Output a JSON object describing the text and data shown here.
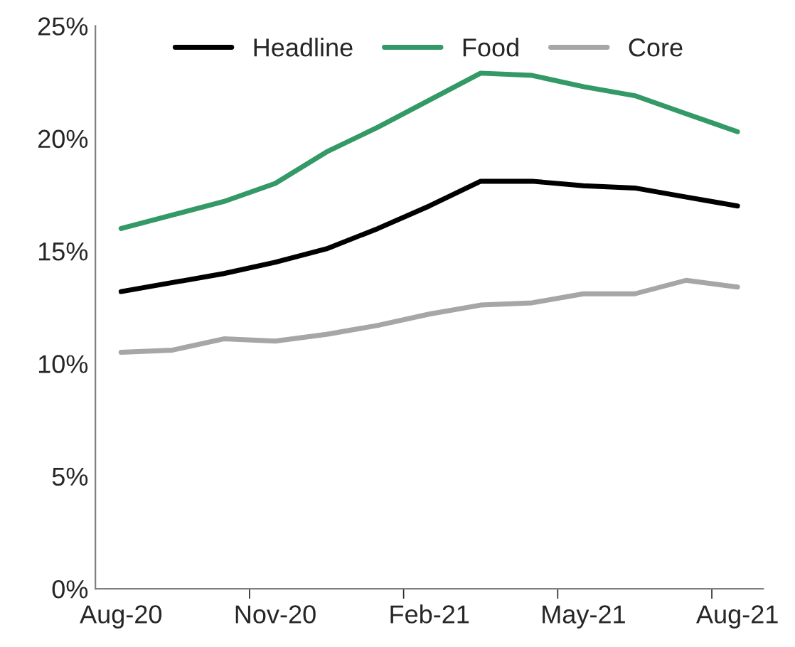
{
  "chart_data": {
    "type": "line",
    "categories": [
      "Aug-20",
      null,
      null,
      "Nov-20",
      null,
      null,
      "Feb-21",
      null,
      null,
      "May-21",
      null,
      null,
      "Aug-21"
    ],
    "series": [
      {
        "name": "Headline",
        "color": "#000000",
        "values": [
          13.2,
          13.6,
          14.0,
          14.5,
          15.1,
          16.0,
          17.0,
          18.1,
          18.1,
          17.9,
          17.8,
          17.4,
          17.0
        ]
      },
      {
        "name": "Food",
        "color": "#339966",
        "values": [
          16.0,
          16.6,
          17.2,
          18.0,
          19.4,
          20.5,
          21.7,
          22.9,
          22.8,
          22.3,
          21.9,
          21.1,
          20.3
        ]
      },
      {
        "name": "Core",
        "color": "#a6a6a6",
        "values": [
          10.5,
          10.6,
          11.1,
          11.0,
          11.3,
          11.7,
          12.2,
          12.6,
          12.7,
          13.1,
          13.1,
          13.7,
          13.4
        ]
      }
    ],
    "ylim": [
      0,
      25
    ],
    "yticks": [
      {
        "value": 0,
        "label": "0%"
      },
      {
        "value": 5,
        "label": "5%"
      },
      {
        "value": 10,
        "label": "10%"
      },
      {
        "value": 15,
        "label": "15%"
      },
      {
        "value": 20,
        "label": "20%"
      },
      {
        "value": 25,
        "label": "25%"
      }
    ],
    "grid": false,
    "legend": "top",
    "marker": "none",
    "line_style": "solid"
  }
}
